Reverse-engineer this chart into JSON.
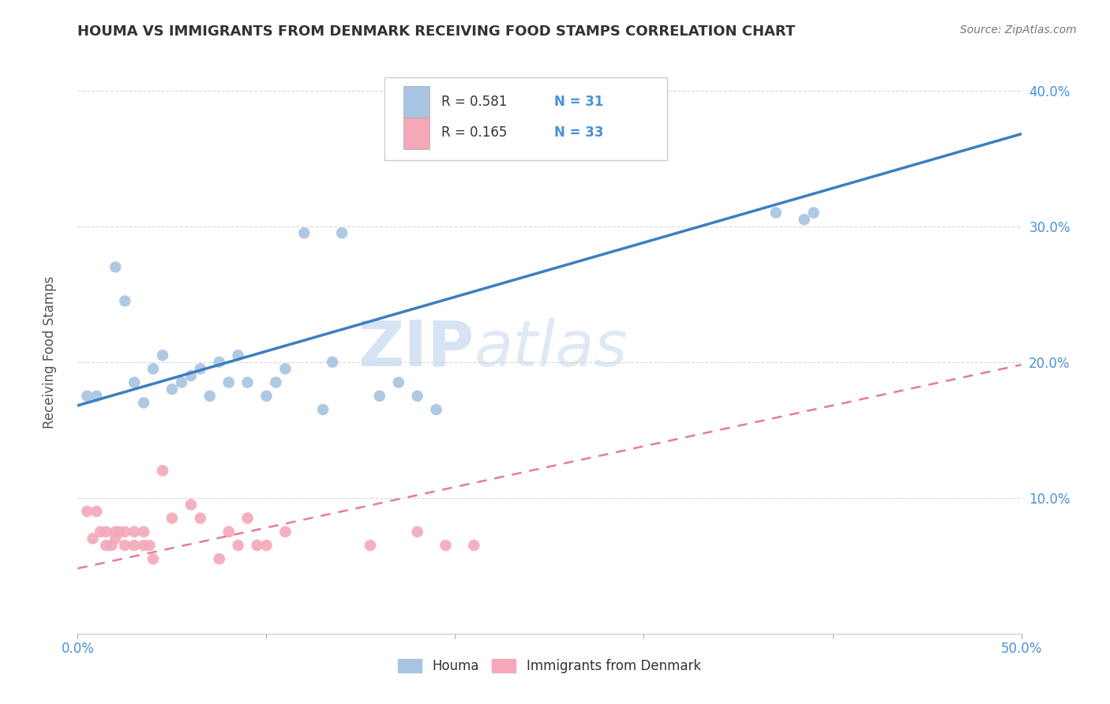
{
  "title": "HOUMA VS IMMIGRANTS FROM DENMARK RECEIVING FOOD STAMPS CORRELATION CHART",
  "source": "Source: ZipAtlas.com",
  "ylabel": "Receiving Food Stamps",
  "xlim": [
    0.0,
    0.5
  ],
  "ylim": [
    0.0,
    0.42
  ],
  "xticks": [
    0.0,
    0.1,
    0.2,
    0.3,
    0.4,
    0.5
  ],
  "yticks": [
    0.0,
    0.1,
    0.2,
    0.3,
    0.4
  ],
  "xticklabels": [
    "0.0%",
    "",
    "",
    "",
    "",
    "50.0%"
  ],
  "yticklabels": [
    "",
    "10.0%",
    "20.0%",
    "30.0%",
    "40.0%"
  ],
  "watermark_zip": "ZIP",
  "watermark_atlas": "atlas",
  "legend_r1": "R = 0.581",
  "legend_n1": "N = 31",
  "legend_r2": "R = 0.165",
  "legend_n2": "N = 33",
  "houma_color": "#a8c4e0",
  "denmark_color": "#f4a8b8",
  "houma_line_color": "#3a7fc1",
  "denmark_line_color": "#e87a99",
  "title_color": "#333333",
  "source_color": "#777777",
  "grid_color": "#d8d8d8",
  "houma_x": [
    0.005,
    0.01,
    0.02,
    0.025,
    0.03,
    0.035,
    0.04,
    0.045,
    0.05,
    0.055,
    0.06,
    0.065,
    0.07,
    0.075,
    0.08,
    0.085,
    0.09,
    0.1,
    0.105,
    0.11,
    0.12,
    0.13,
    0.135,
    0.14,
    0.16,
    0.17,
    0.18,
    0.19,
    0.37,
    0.385,
    0.39
  ],
  "houma_y": [
    0.175,
    0.175,
    0.27,
    0.245,
    0.185,
    0.17,
    0.195,
    0.205,
    0.18,
    0.185,
    0.19,
    0.195,
    0.175,
    0.2,
    0.185,
    0.205,
    0.185,
    0.175,
    0.185,
    0.195,
    0.295,
    0.165,
    0.2,
    0.295,
    0.175,
    0.185,
    0.175,
    0.165,
    0.31,
    0.305,
    0.31
  ],
  "denmark_x": [
    0.005,
    0.008,
    0.01,
    0.012,
    0.015,
    0.015,
    0.018,
    0.02,
    0.02,
    0.022,
    0.025,
    0.025,
    0.03,
    0.03,
    0.035,
    0.035,
    0.038,
    0.04,
    0.045,
    0.05,
    0.06,
    0.065,
    0.075,
    0.08,
    0.085,
    0.09,
    0.095,
    0.1,
    0.11,
    0.155,
    0.18,
    0.195,
    0.21
  ],
  "denmark_y": [
    0.09,
    0.07,
    0.09,
    0.075,
    0.065,
    0.075,
    0.065,
    0.07,
    0.075,
    0.075,
    0.065,
    0.075,
    0.065,
    0.075,
    0.065,
    0.075,
    0.065,
    0.055,
    0.12,
    0.085,
    0.095,
    0.085,
    0.055,
    0.075,
    0.065,
    0.085,
    0.065,
    0.065,
    0.075,
    0.065,
    0.075,
    0.065,
    0.065
  ],
  "houma_line_x0": 0.0,
  "houma_line_x1": 0.5,
  "houma_line_y0": 0.168,
  "houma_line_y1": 0.368,
  "denmark_line_x0": 0.0,
  "denmark_line_x1": 0.5,
  "denmark_line_y0": 0.048,
  "denmark_line_y1": 0.198
}
